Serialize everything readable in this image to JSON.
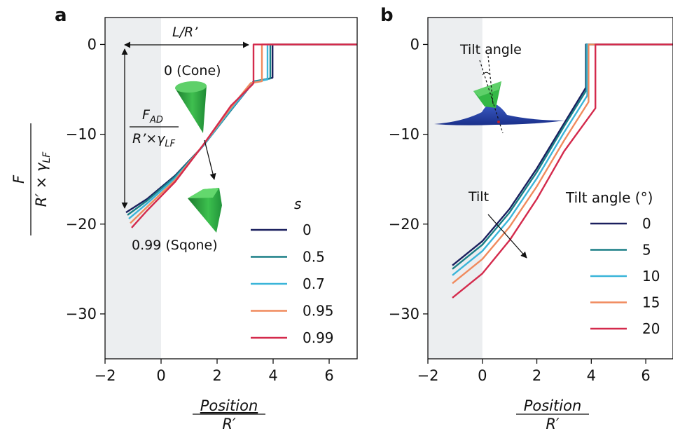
{
  "panels": {
    "a": {
      "letter": "a",
      "annotations": {
        "length": "L/R’",
        "cone": "0 (Cone)",
        "sqone": "0.99 (Sqone)",
        "fad_num": "F",
        "fad_num_sub": "AD",
        "fad_den": "R’×γ",
        "fad_den_sub": "LF"
      }
    },
    "b": {
      "letter": "b",
      "annotations": {
        "tilt_angle": "Tilt angle",
        "tilt": "Tilt"
      }
    }
  },
  "ylabel": {
    "num": "F",
    "den": "R′ × γ",
    "den_sub": "LF"
  },
  "xlabel": {
    "num": "Position",
    "den": "R′"
  },
  "chart_data": [
    {
      "type": "line",
      "panel": "a",
      "xlim": [
        -2,
        7
      ],
      "ylim": [
        -35,
        3
      ],
      "xticks": [
        -2,
        0,
        2,
        4,
        6
      ],
      "yticks": [
        0,
        -10,
        -20,
        -30
      ],
      "shaded_region": [
        -2,
        0
      ],
      "legend_title": "s",
      "legend_position": "lower-right",
      "series": [
        {
          "name": "0",
          "color": "#1a1f5e",
          "x": [
            -1.25,
            -0.5,
            0.5,
            1.5,
            2.5,
            3.3,
            3.98,
            3.98,
            7.0
          ],
          "y": [
            -18.7,
            -17.2,
            -14.6,
            -11.3,
            -7.3,
            -4.2,
            -3.7,
            0,
            0
          ]
        },
        {
          "name": "0.5",
          "color": "#1a7f86",
          "x": [
            -1.2,
            -0.5,
            0.5,
            1.5,
            2.5,
            3.3,
            3.9,
            3.9,
            7.0
          ],
          "y": [
            -19.0,
            -17.4,
            -14.7,
            -11.3,
            -7.3,
            -4.1,
            -3.8,
            0,
            0
          ]
        },
        {
          "name": "0.7",
          "color": "#3ab5d9",
          "x": [
            -1.15,
            -0.5,
            0.5,
            1.5,
            2.5,
            3.3,
            3.8,
            3.8,
            7.0
          ],
          "y": [
            -19.4,
            -17.7,
            -14.9,
            -11.3,
            -7.2,
            -4.2,
            -3.9,
            0,
            0
          ]
        },
        {
          "name": "0.95",
          "color": "#f08a5d",
          "x": [
            -1.1,
            -0.5,
            0.5,
            1.5,
            2.5,
            3.2,
            3.6,
            3.6,
            7.0
          ],
          "y": [
            -19.9,
            -18.1,
            -15.1,
            -11.2,
            -7.0,
            -4.3,
            -4.1,
            0,
            0
          ]
        },
        {
          "name": "0.99",
          "color": "#d42a4c",
          "x": [
            -1.05,
            -0.5,
            0.5,
            1.5,
            2.5,
            3.25,
            3.3,
            3.3,
            7.0
          ],
          "y": [
            -20.4,
            -18.5,
            -15.3,
            -11.2,
            -6.8,
            -4.5,
            -4.3,
            0,
            0
          ]
        }
      ]
    },
    {
      "type": "line",
      "panel": "b",
      "xlim": [
        -2,
        7
      ],
      "ylim": [
        -35,
        3
      ],
      "xticks": [
        -2,
        0,
        2,
        4,
        6
      ],
      "yticks": [
        0,
        -10,
        -20,
        -30
      ],
      "shaded_region": [
        -2,
        0
      ],
      "legend_title": "Tilt angle (°)",
      "legend_position": "lower-right",
      "series": [
        {
          "name": "0",
          "color": "#1a1f5e",
          "x": [
            -1.1,
            0,
            1,
            2,
            3,
            3.8,
            3.8,
            7.0
          ],
          "y": [
            -24.6,
            -21.9,
            -18.3,
            -13.8,
            -8.8,
            -4.8,
            0,
            0
          ]
        },
        {
          "name": "5",
          "color": "#1a7f86",
          "x": [
            -1.1,
            0,
            1,
            2,
            3,
            3.82,
            3.82,
            7.0
          ],
          "y": [
            -25.0,
            -22.3,
            -18.7,
            -14.2,
            -9.1,
            -5.1,
            0,
            0
          ]
        },
        {
          "name": "10",
          "color": "#3ab5d9",
          "x": [
            -1.1,
            0,
            1,
            2,
            3,
            3.85,
            3.85,
            7.0
          ],
          "y": [
            -25.7,
            -23.0,
            -19.4,
            -14.9,
            -9.8,
            -5.7,
            0,
            0
          ]
        },
        {
          "name": "15",
          "color": "#f08a5d",
          "x": [
            -1.1,
            0,
            1,
            2,
            3,
            3.9,
            3.9,
            7.0
          ],
          "y": [
            -26.6,
            -23.9,
            -20.3,
            -15.8,
            -10.7,
            -6.4,
            0,
            0
          ]
        },
        {
          "name": "20",
          "color": "#d42a4c",
          "x": [
            -1.1,
            0,
            1,
            2,
            3,
            4.15,
            4.15,
            7.0
          ],
          "y": [
            -28.2,
            -25.5,
            -21.8,
            -17.2,
            -11.9,
            -7.1,
            0,
            0
          ]
        }
      ]
    }
  ]
}
